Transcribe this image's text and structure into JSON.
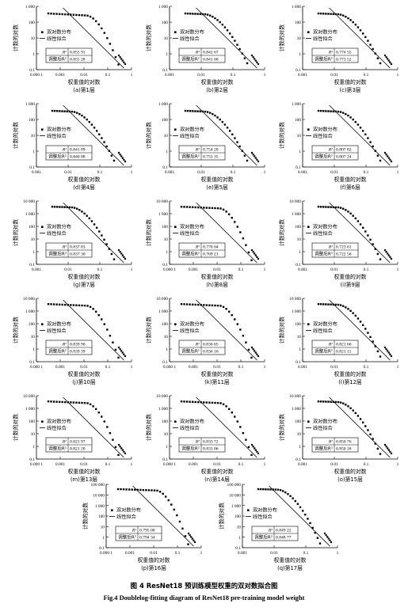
{
  "figure": {
    "caption_cn": "图 4    ResNet18 预训练模型权重的双对数拟合图",
    "caption_en": "Fig.4    Doublelog-fitting diagram of ResNet18 pre-training model weight",
    "ylabel": "计数的对数",
    "xlabel": "权重值的对数",
    "legend": {
      "scatter": "双对数分布",
      "line": "线性拟合"
    },
    "stat_r2_label": "R²",
    "stat_adj_label": "调整后R²",
    "colors": {
      "ink": "#000000",
      "background": "#ffffff"
    }
  },
  "chart_data": [
    {
      "type": "scatter",
      "label": "(a)第1层",
      "r2": "0.855 91",
      "adj_r2": "0.855 28",
      "x_ticks": [
        "0.000 1",
        "0.001",
        "0.01",
        "0.1",
        "1"
      ],
      "y_ticks": [
        "1 000",
        "100",
        "10",
        "1",
        "0.1"
      ],
      "xlim": [
        0.0001,
        1
      ],
      "ylim": [
        0.1,
        1000
      ]
    },
    {
      "type": "scatter",
      "label": "(b)第2层",
      "r2": "0.842 67",
      "adj_r2": "0.841 60",
      "x_ticks": [
        "0.001",
        "0.01",
        "0.1",
        "1"
      ],
      "y_ticks": [
        "1 000",
        "100",
        "10",
        "1",
        "0.1"
      ],
      "xlim": [
        0.001,
        1
      ],
      "ylim": [
        0.1,
        1000
      ]
    },
    {
      "type": "scatter",
      "label": "(c)第3层",
      "r2": "0.774 55",
      "adj_r2": "0.773 52",
      "x_ticks": [
        "0.001",
        "0.01",
        "0.1",
        "1"
      ],
      "y_ticks": [
        "1 000",
        "100",
        "10",
        "1",
        "0.1"
      ],
      "xlim": [
        0.001,
        1
      ],
      "ylim": [
        0.1,
        1000
      ]
    },
    {
      "type": "scatter",
      "label": "(d)第4层",
      "r2": "0.841 09",
      "adj_r2": "0.840 08",
      "x_ticks": [
        "0.001",
        "0.01",
        "0.1",
        "1"
      ],
      "y_ticks": [
        "1 000",
        "100",
        "10",
        "1",
        "0.1"
      ],
      "xlim": [
        0.001,
        1
      ],
      "ylim": [
        0.1,
        1000
      ]
    },
    {
      "type": "scatter",
      "label": "(e)第5层",
      "r2": "0.754 20",
      "adj_r2": "0.753 35",
      "x_ticks": [
        "0.001",
        "0.01",
        "0.1",
        "1"
      ],
      "y_ticks": [
        "1 000",
        "100",
        "10",
        "1",
        "0.1"
      ],
      "xlim": [
        0.001,
        1
      ],
      "ylim": [
        0.1,
        1000
      ]
    },
    {
      "type": "scatter",
      "label": "(f)第6层",
      "r2": "0.807 82",
      "adj_r2": "0.807 24",
      "x_ticks": [
        "0.001",
        "0.01",
        "0.1",
        "1"
      ],
      "y_ticks": [
        "1 000",
        "100",
        "10",
        "1",
        "0.1"
      ],
      "xlim": [
        0.001,
        1
      ],
      "ylim": [
        0.1,
        1000
      ]
    },
    {
      "type": "scatter",
      "label": "(g)第7层",
      "r2": "0.837 83",
      "adj_r2": "0.837 30",
      "x_ticks": [
        "0.001",
        "0.01",
        "0.1",
        "1"
      ],
      "y_ticks": [
        "10 000",
        "1 000",
        "100",
        "10",
        "1",
        "0.1"
      ],
      "xlim": [
        0.001,
        1
      ],
      "ylim": [
        0.1,
        10000
      ]
    },
    {
      "type": "scatter",
      "label": "(h)第8层",
      "r2": "0.770 04",
      "adj_r2": "0.769 21",
      "x_ticks": [
        "0.000 1",
        "0.001",
        "0.01",
        "0.1",
        "1"
      ],
      "y_ticks": [
        "10 000",
        "1 000",
        "100",
        "10",
        "1",
        "0.1"
      ],
      "xlim": [
        0.0001,
        1
      ],
      "ylim": [
        0.1,
        10000
      ]
    },
    {
      "type": "scatter",
      "label": "(i)第9层",
      "r2": "0.723 61",
      "adj_r2": "0.722 56",
      "x_ticks": [
        "0.001",
        "0.01",
        "0.1",
        "1"
      ],
      "y_ticks": [
        "10 000",
        "1 000",
        "100",
        "10",
        "1",
        "0.1"
      ],
      "xlim": [
        0.001,
        1
      ],
      "ylim": [
        0.1,
        10000
      ]
    },
    {
      "type": "scatter",
      "label": "(j)第10层",
      "r2": "0.839 90",
      "adj_r2": "0.839 39",
      "x_ticks": [
        "0.000 1",
        "0.001",
        "0.01",
        "0.1",
        "1"
      ],
      "y_ticks": [
        "10 000",
        "1 000",
        "100",
        "10",
        "1",
        "0.1"
      ],
      "xlim": [
        0.0001,
        1
      ],
      "ylim": [
        0.1,
        10000
      ]
    },
    {
      "type": "scatter",
      "label": "(k)第11层",
      "r2": "0.836 65",
      "adj_r2": "0.836 16",
      "x_ticks": [
        "0.000 1",
        "0.001",
        "0.01",
        "0.1",
        "1"
      ],
      "y_ticks": [
        "10 000",
        "1 000",
        "100",
        "10",
        "1",
        "0.1"
      ],
      "xlim": [
        0.0001,
        1
      ],
      "ylim": [
        0.1,
        10000
      ]
    },
    {
      "type": "scatter",
      "label": "(l)第12层",
      "r2": "0.821 66",
      "adj_r2": "0.821 11",
      "x_ticks": [
        "0.001",
        "0.01",
        "0.1",
        "1"
      ],
      "y_ticks": [
        "10 000",
        "1 000",
        "100",
        "10",
        "1",
        "0.1"
      ],
      "xlim": [
        0.001,
        1
      ],
      "ylim": [
        0.1,
        10000
      ]
    },
    {
      "type": "scatter",
      "label": "(m)第13层",
      "r2": "0.821 97",
      "adj_r2": "0.821 20",
      "x_ticks": [
        "0.000 1",
        "0.001",
        "0.01",
        "0.1",
        "1"
      ],
      "y_ticks": [
        "10 000",
        "1 000",
        "100",
        "10",
        "1",
        "0.1"
      ],
      "xlim": [
        0.0001,
        1
      ],
      "ylim": [
        0.1,
        10000
      ]
    },
    {
      "type": "scatter",
      "label": "(n)第14层",
      "r2": "0.833 72",
      "adj_r2": "0.833 06",
      "x_ticks": [
        "0.000 1",
        "0.001",
        "0.01",
        "0.1",
        "1"
      ],
      "y_ticks": [
        "10 000",
        "1 000",
        "100",
        "10",
        "1",
        "0.1"
      ],
      "xlim": [
        0.0001,
        1
      ],
      "ylim": [
        0.1,
        10000
      ]
    },
    {
      "type": "scatter",
      "label": "(o)第15层",
      "r2": "0.850 76",
      "adj_r2": "0.850 18",
      "x_ticks": [
        "0.001",
        "0.01",
        "0.1",
        "1"
      ],
      "y_ticks": [
        "10 000",
        "1 000",
        "100",
        "10",
        "1",
        "0.1"
      ],
      "xlim": [
        0.001,
        1
      ],
      "ylim": [
        0.1,
        10000
      ]
    },
    {
      "type": "scatter",
      "label": "(p)第16层",
      "r2": "0.795 00",
      "adj_r2": "0.794 34",
      "x_ticks": [
        "0.000 1",
        "0.001",
        "0.01",
        "0.1",
        "1"
      ],
      "y_ticks": [
        "100 000",
        "10 000",
        "1 000",
        "100",
        "10",
        "1",
        "0.1"
      ],
      "xlim": [
        0.0001,
        1
      ],
      "ylim": [
        0.1,
        100000
      ]
    },
    {
      "type": "scatter",
      "label": "(q)第17层",
      "r2": "0.849 22",
      "adj_r2": "0.848 77",
      "x_ticks": [
        "0.001",
        "0.01",
        "0.1",
        "1"
      ],
      "y_ticks": [
        "100 000",
        "10 000",
        "1 000",
        "100",
        "10",
        "1",
        "0.1"
      ],
      "xlim": [
        0.001,
        1
      ],
      "ylim": [
        0.1,
        100000
      ]
    }
  ]
}
